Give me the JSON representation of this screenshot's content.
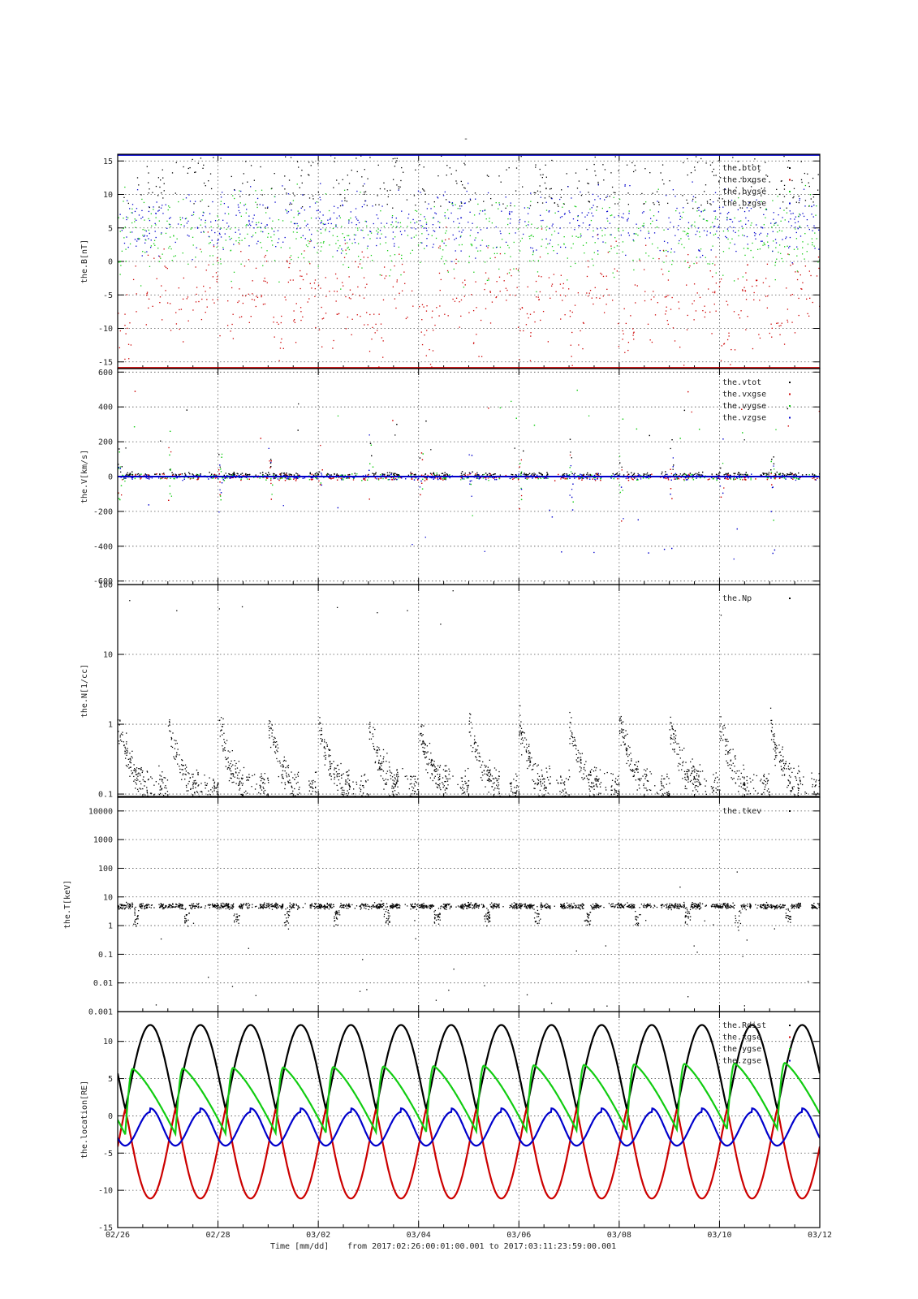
{
  "figure": {
    "title": "-",
    "footer": {
      "xlabel": "Time [mm/dd]",
      "range_text": "from 2017:02:26:00:01:00.001  to  2017:03:11:23:59:00.001"
    },
    "x_ticks": [
      "02/26",
      "02/28",
      "03/02",
      "03/04",
      "03/06",
      "03/08",
      "03/10",
      "03/12"
    ],
    "x_tick_days": [
      0,
      2,
      4,
      6,
      8,
      10,
      12,
      14
    ],
    "colors": {
      "black": "#000000",
      "red": "#cc0000",
      "green": "#11cc11",
      "blue": "#0000cc"
    }
  },
  "chart_data": [
    {
      "type": "scatter",
      "ylabel": "the.B[nT]",
      "ylim": [
        -16,
        16
      ],
      "yscale": "linear",
      "y_ticks": [
        15,
        10,
        5,
        0,
        -5,
        -10,
        -15
      ],
      "grid": true,
      "legend_position": "top-right",
      "series": [
        {
          "name": "the.btot",
          "color": "#000000"
        },
        {
          "name": "the.bxgse",
          "color": "#cc0000"
        },
        {
          "name": "the.bygse",
          "color": "#11cc11"
        },
        {
          "name": "the.bzgse",
          "color": "#0000cc"
        }
      ]
    },
    {
      "type": "scatter",
      "ylabel": "the.V[km/s]",
      "ylim": [
        -620,
        620
      ],
      "yscale": "linear",
      "y_ticks": [
        600,
        400,
        200,
        0,
        -200,
        -400,
        -600
      ],
      "grid": true,
      "legend_position": "top-right",
      "series": [
        {
          "name": "the.vtot",
          "color": "#000000"
        },
        {
          "name": "the.vxgse",
          "color": "#cc0000"
        },
        {
          "name": "the.vygse",
          "color": "#11cc11"
        },
        {
          "name": "the.vzgse",
          "color": "#0000cc"
        }
      ]
    },
    {
      "type": "scatter",
      "ylabel": "the.N[1/cc]",
      "ylim": [
        0.09,
        100
      ],
      "yscale": "log",
      "y_ticks": [
        "100",
        "10",
        "1",
        "0.1"
      ],
      "y_tick_values": [
        100,
        10,
        1,
        0.1
      ],
      "grid": true,
      "legend_position": "top-right",
      "series": [
        {
          "name": "the.Np",
          "color": "#000000"
        }
      ]
    },
    {
      "type": "scatter",
      "ylabel": "the.T[keV]",
      "ylim": [
        0.001,
        30000
      ],
      "yscale": "log",
      "y_ticks": [
        "10000",
        "1000",
        "100",
        "10",
        "1",
        "0.1",
        "0.01",
        "0.001"
      ],
      "y_tick_values": [
        10000,
        1000,
        100,
        10,
        1,
        0.1,
        0.01,
        0.001
      ],
      "grid": true,
      "legend_position": "top-right",
      "series": [
        {
          "name": "the.tkev",
          "color": "#000000"
        }
      ]
    },
    {
      "type": "line",
      "ylabel": "the.location[RE]",
      "ylim": [
        -15,
        14
      ],
      "yscale": "linear",
      "y_ticks": [
        10,
        5,
        0,
        -5,
        -10,
        -15
      ],
      "grid": true,
      "legend_position": "top-right",
      "orbit_period_days": 1.0,
      "series": [
        {
          "name": "the.Rdist",
          "color": "#000000",
          "min": 1,
          "max": 12.2
        },
        {
          "name": "the.xgse",
          "color": "#cc0000",
          "min": -11.1,
          "max": 0.9
        },
        {
          "name": "the.ygse",
          "color": "#11cc11",
          "min": -2.5,
          "max": 6.3
        },
        {
          "name": "the.zgse",
          "color": "#0000cc",
          "min": -4.0,
          "max": 1.0
        }
      ]
    }
  ]
}
